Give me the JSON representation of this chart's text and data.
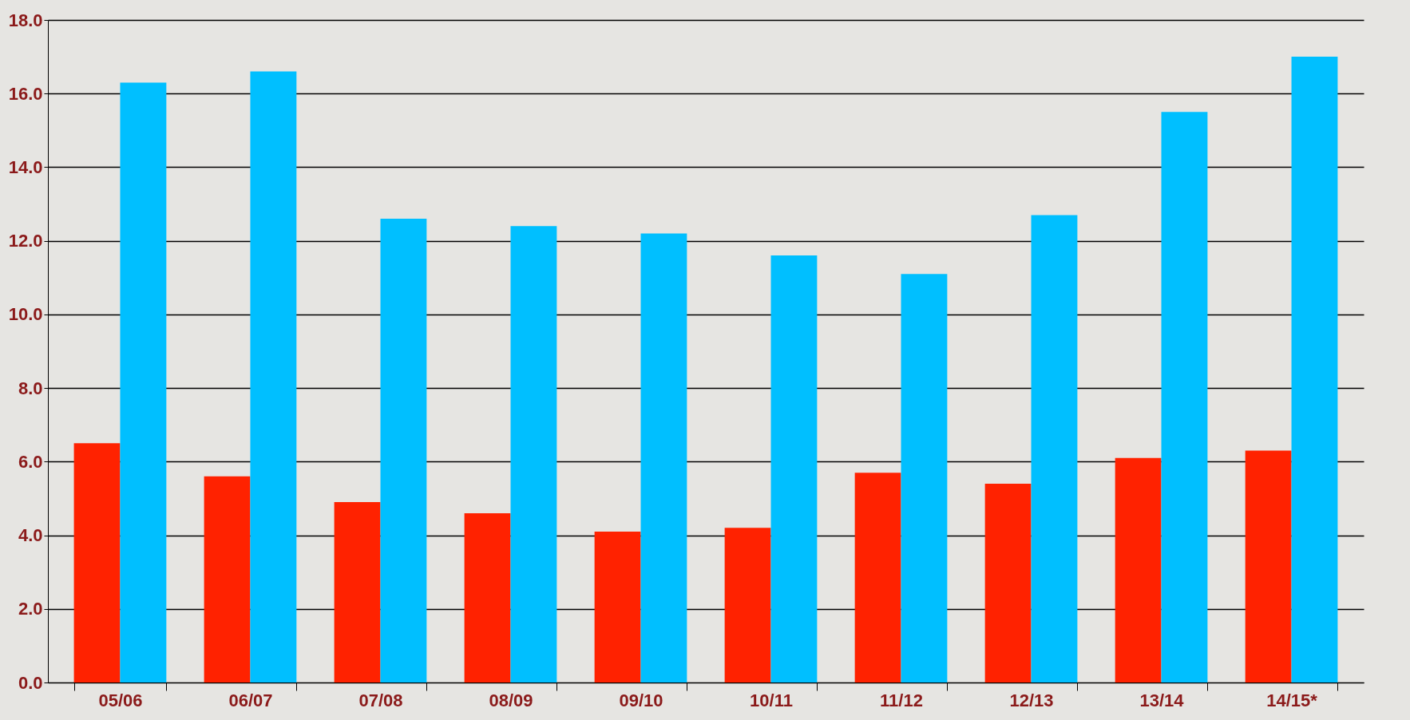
{
  "chart_data": {
    "type": "bar",
    "categories": [
      "05/06",
      "06/07",
      "07/08",
      "08/09",
      "09/10",
      "10/11",
      "11/12",
      "12/13",
      "13/14",
      "14/15*"
    ],
    "series": [
      {
        "color": "#ff2200",
        "values": [
          6.5,
          5.6,
          4.9,
          4.6,
          4.1,
          4.2,
          5.7,
          5.4,
          6.1,
          6.3
        ]
      },
      {
        "color": "#00bfff",
        "values": [
          16.3,
          16.6,
          12.6,
          12.4,
          12.2,
          11.6,
          11.1,
          12.7,
          15.5,
          17.0
        ]
      }
    ],
    "ylim": [
      0,
      18
    ],
    "yticks": [
      {
        "value": 0,
        "label": "0.0"
      },
      {
        "value": 2,
        "label": "2.0"
      },
      {
        "value": 4,
        "label": "4.0"
      },
      {
        "value": 6,
        "label": "6.0"
      },
      {
        "value": 8,
        "label": "8.0"
      },
      {
        "value": 10,
        "label": "10.0"
      },
      {
        "value": 12,
        "label": "12.0"
      },
      {
        "value": 14,
        "label": "14.0"
      },
      {
        "value": 16,
        "label": "16.0"
      },
      {
        "value": 18,
        "label": "18.0"
      }
    ],
    "grid": "y",
    "legend": false
  }
}
